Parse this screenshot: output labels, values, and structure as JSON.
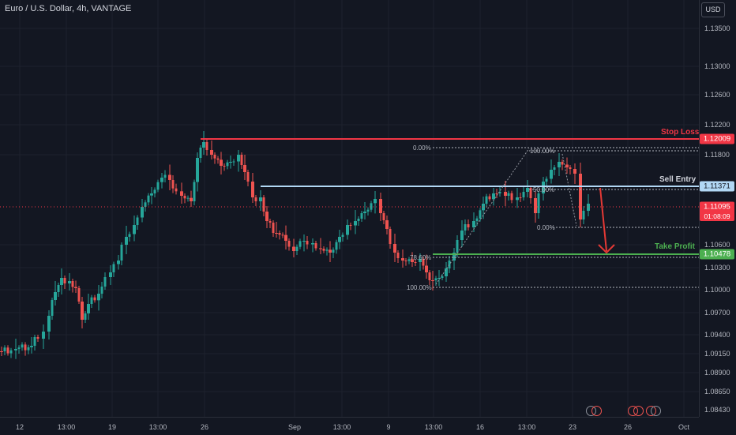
{
  "header": {
    "title": "Euro / U.S. Dollar, 4h, VANTAGE",
    "currency_button": "USD"
  },
  "price_axis": {
    "ticks": [
      "1.13500",
      "1.13000",
      "1.12600",
      "1.12200",
      "1.11800",
      "1.10600",
      "1.10300",
      "1.10000",
      "1.09700",
      "1.09400",
      "1.09150",
      "1.08900",
      "1.08650",
      "1.08430"
    ],
    "stop_loss_label": "1.12009",
    "entry_label": "1.11371",
    "current_price": "1.11095",
    "countdown": "01:08:09",
    "take_profit_label": "1.10478"
  },
  "time_axis": {
    "ticks": [
      "12",
      "13:00",
      "19",
      "13:00",
      "26",
      "Sep",
      "13:00",
      "9",
      "13:00",
      "16",
      "13:00",
      "23",
      "26",
      "Oct"
    ]
  },
  "annotations": {
    "stop_loss": "Stop Loss",
    "sell_entry": "Sell Entry",
    "take_profit": "Take Profit"
  },
  "fib_left": {
    "top": "0.00%",
    "mid": "78.60%",
    "bottom": "100.00%"
  },
  "fib_right": {
    "top": "100.00%",
    "mid": "50.00%",
    "bottom": "0.00%"
  },
  "colors": {
    "bg": "#131722",
    "up": "#26a69a",
    "down": "#ef5350",
    "stop": "#f23645",
    "entry": "#b2d8f5",
    "tp": "#4caf50",
    "arrow": "#e53935"
  },
  "icons": [
    "event-icon",
    "event-icon",
    "event-icon"
  ]
}
